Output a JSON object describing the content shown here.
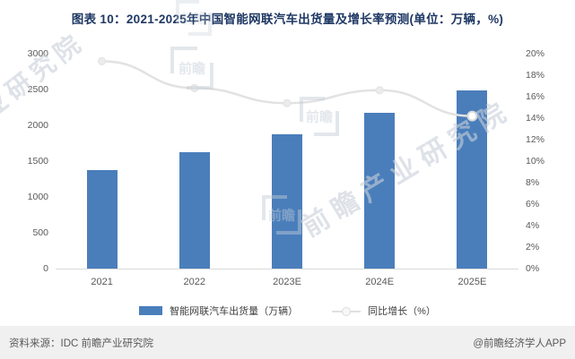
{
  "title": "图表 10：2021-2025年中国智能网联汽车出货量及增长率预测(单位：万辆，%)",
  "chart_data": {
    "type": "bar",
    "subtype": "bar+line combo",
    "categories": [
      "2021",
      "2022",
      "2023E",
      "2024E",
      "2025E"
    ],
    "series": [
      {
        "name": "智能网联汽车出货量（万辆）",
        "type": "bar",
        "axis": "left",
        "values": [
          1370,
          1620,
          1870,
          2180,
          2490
        ]
      },
      {
        "name": "同比增长（%）",
        "type": "line",
        "axis": "right",
        "values": [
          19.3,
          16.8,
          15.4,
          16.6,
          14.2
        ]
      }
    ],
    "left_axis": {
      "min": 0,
      "max": 3000,
      "ticks": [
        0,
        500,
        1000,
        1500,
        2000,
        2500,
        3000
      ]
    },
    "right_axis": {
      "min": 0,
      "max": 20,
      "ticks": [
        "0%",
        "2%",
        "4%",
        "6%",
        "8%",
        "10%",
        "12%",
        "14%",
        "16%",
        "18%",
        "20%"
      ]
    },
    "grid": false,
    "legend_position": "bottom"
  },
  "legend": {
    "bar_label": "智能网联汽车出货量（万辆）",
    "line_label": "同比增长（%）"
  },
  "footer": {
    "source": "资料来源：IDC 前瞻产业研究院",
    "credit": "@前瞻经济学人APP"
  },
  "watermarks": {
    "diag_text": "前瞻产业研究院",
    "logo_text": "前瞻"
  },
  "colors": {
    "bar": "#4a7ebb",
    "line": "#e2e2e2",
    "title": "#1f3864",
    "axis_text": "#595959",
    "footer_bg": "#f0f0f0"
  }
}
